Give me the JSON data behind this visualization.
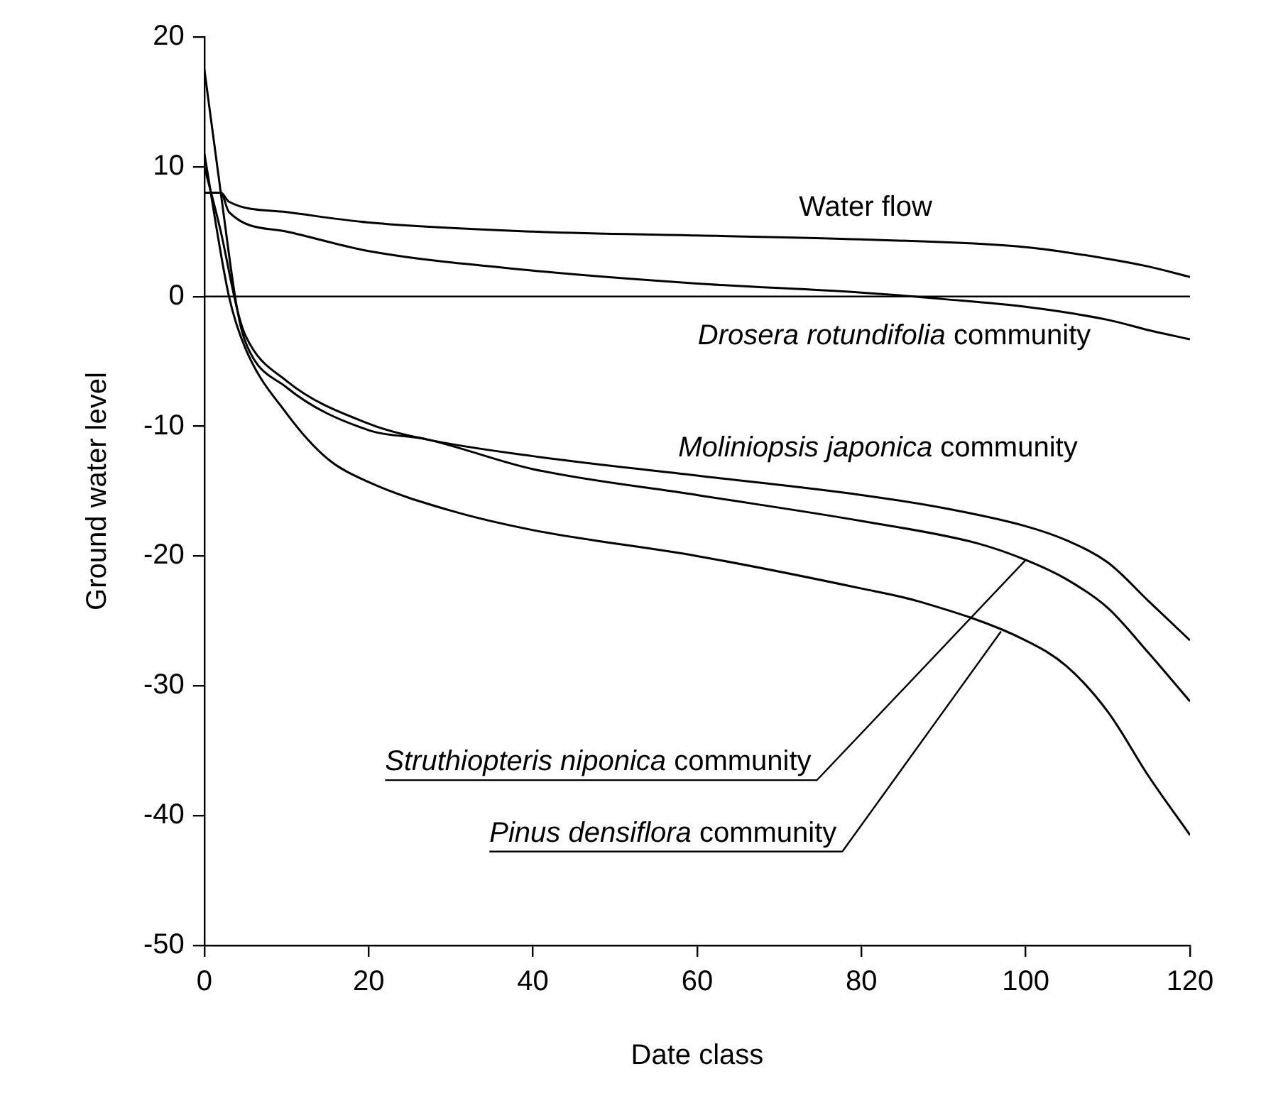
{
  "chart_data": {
    "type": "line",
    "xlabel": "Date class",
    "ylabel": "Ground water level",
    "xlim": [
      0,
      120
    ],
    "xticks": [
      0,
      20,
      40,
      60,
      80,
      100,
      120
    ],
    "ylim": [
      -50,
      20
    ],
    "yticks": [
      -50,
      -40,
      -30,
      -20,
      -10,
      0,
      10,
      20
    ],
    "grid": false,
    "legend": false,
    "marker": "none",
    "line_style": "solid",
    "ref_lines": [
      {
        "axis": "y",
        "value": 0,
        "color": "#000000"
      }
    ],
    "series": [
      {
        "name": "Water flow",
        "color": "#000000",
        "x": [
          0,
          2,
          3,
          10,
          20,
          40,
          60,
          80,
          100,
          110,
          115,
          120
        ],
        "values": [
          8,
          8,
          7.3,
          6.5,
          5.7,
          5.0,
          4.7,
          4.4,
          3.8,
          2.9,
          2.3,
          1.5
        ]
      },
      {
        "name": "Drosera rotundifolia community",
        "color": "#000000",
        "x": [
          0,
          2,
          3,
          10,
          20,
          40,
          60,
          80,
          90,
          100,
          110,
          115,
          120
        ],
        "values": [
          8,
          8,
          6.5,
          5,
          3.5,
          2,
          1,
          0.3,
          -0.2,
          -0.8,
          -1.8,
          -2.6,
          -3.3
        ]
      },
      {
        "name": "Moliniopsis japonica community",
        "color": "#000000",
        "x": [
          0,
          2,
          4,
          5,
          10,
          20,
          27,
          40,
          60,
          80,
          90,
          100,
          105,
          110,
          115,
          120
        ],
        "values": [
          10,
          5,
          -1,
          -3,
          -6.5,
          -9.8,
          -11,
          -12.3,
          -13.8,
          -15.3,
          -16.3,
          -17.7,
          -18.8,
          -20.5,
          -23.5,
          -26.5
        ]
      },
      {
        "name": "Struthiopteris niponica community",
        "color": "#000000",
        "x": [
          0,
          2,
          4,
          5,
          10,
          20,
          27,
          40,
          60,
          80,
          94,
          100,
          105,
          110,
          115,
          120
        ],
        "values": [
          17.5,
          8,
          -1,
          -3.5,
          -7,
          -10.3,
          -11,
          -13.3,
          -15.3,
          -17.3,
          -19,
          -20.3,
          -21.8,
          -24,
          -27.5,
          -31.2
        ]
      },
      {
        "name": "Pinus densiflora community",
        "color": "#000000",
        "x": [
          0,
          3,
          5,
          10,
          15,
          20,
          30,
          40,
          60,
          80,
          87,
          100,
          105,
          110,
          115,
          120
        ],
        "values": [
          11,
          0,
          -4,
          -9,
          -12.5,
          -14.3,
          -16.5,
          -18,
          -20,
          -22.5,
          -23.5,
          -26.5,
          -28.5,
          -32,
          -37,
          -41.5
        ]
      }
    ]
  }
}
